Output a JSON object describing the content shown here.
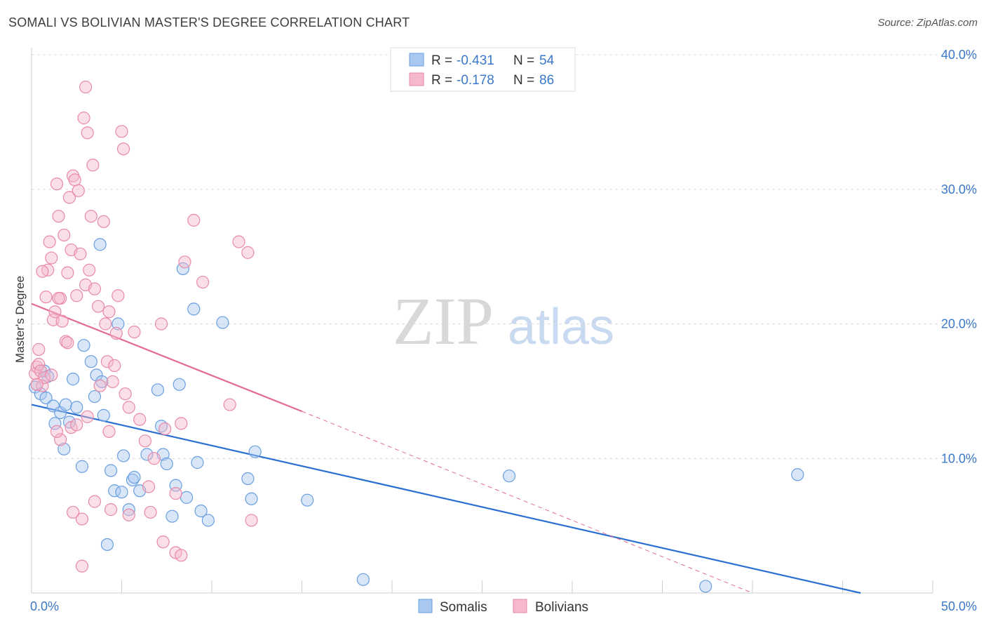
{
  "header": {
    "title": "SOMALI VS BOLIVIAN MASTER'S DEGREE CORRELATION CHART",
    "source": "Source: ZipAtlas.com"
  },
  "watermark": {
    "zip": "ZIP",
    "atlas": "atlas"
  },
  "legend": {
    "rows": [
      {
        "r_label": "R =",
        "r_value": "-0.431",
        "n_label": "N =",
        "n_value": "54",
        "color": "#a8c8f0"
      },
      {
        "r_label": "R =",
        "r_value": "-0.178",
        "n_label": "N =",
        "n_value": "86",
        "color": "#f5b8cc"
      }
    ]
  },
  "bottom_legend": [
    {
      "label": "Somalis",
      "color": "#a8c8f0"
    },
    {
      "label": "Bolivians",
      "color": "#f5b8cc"
    }
  ],
  "chart_data": {
    "type": "scatter",
    "xlabel": "",
    "ylabel": "Master's Degree",
    "xlim": [
      0,
      50
    ],
    "ylim": [
      0,
      40
    ],
    "y_ticks": [
      {
        "value": 10,
        "label": "10.0%"
      },
      {
        "value": 20,
        "label": "20.0%"
      },
      {
        "value": 30,
        "label": "30.0%"
      },
      {
        "value": 40,
        "label": "40.0%"
      }
    ],
    "x_tick_labels": [
      {
        "value": 0,
        "label": "0.0%"
      },
      {
        "value": 50,
        "label": "50.0%"
      }
    ],
    "series": [
      {
        "name": "Somalis",
        "color": "#a8c8f0",
        "stroke": "#6a9fe0",
        "trend_color": "#2b6fd1",
        "trend": {
          "x0": 0,
          "y0": 14.0,
          "x1": 46.0,
          "y1": 0.0
        },
        "points": [
          [
            0.2,
            15.3
          ],
          [
            0.5,
            14.8
          ],
          [
            0.7,
            16.5
          ],
          [
            0.9,
            16.1
          ],
          [
            0.8,
            14.5
          ],
          [
            1.2,
            13.9
          ],
          [
            1.3,
            12.6
          ],
          [
            1.6,
            13.4
          ],
          [
            1.9,
            14.0
          ],
          [
            1.8,
            10.7
          ],
          [
            2.1,
            12.7
          ],
          [
            2.3,
            15.9
          ],
          [
            2.5,
            13.8
          ],
          [
            2.8,
            9.4
          ],
          [
            2.9,
            18.4
          ],
          [
            3.3,
            17.2
          ],
          [
            3.5,
            14.6
          ],
          [
            3.6,
            16.2
          ],
          [
            3.9,
            15.7
          ],
          [
            3.8,
            25.9
          ],
          [
            4.0,
            13.2
          ],
          [
            4.4,
            9.1
          ],
          [
            4.6,
            7.6
          ],
          [
            4.8,
            20.0
          ],
          [
            5.0,
            7.5
          ],
          [
            5.1,
            10.2
          ],
          [
            5.4,
            6.2
          ],
          [
            5.6,
            8.4
          ],
          [
            5.7,
            8.6
          ],
          [
            6.0,
            7.6
          ],
          [
            6.4,
            10.3
          ],
          [
            7.0,
            15.1
          ],
          [
            7.2,
            12.4
          ],
          [
            7.3,
            10.3
          ],
          [
            7.5,
            9.6
          ],
          [
            7.8,
            5.7
          ],
          [
            8.0,
            8.0
          ],
          [
            8.2,
            15.5
          ],
          [
            8.4,
            24.1
          ],
          [
            8.6,
            7.1
          ],
          [
            9.0,
            21.1
          ],
          [
            9.2,
            9.7
          ],
          [
            9.4,
            6.1
          ],
          [
            9.8,
            5.4
          ],
          [
            10.6,
            20.1
          ],
          [
            12.0,
            8.5
          ],
          [
            12.2,
            7.0
          ],
          [
            12.4,
            10.5
          ],
          [
            15.3,
            6.9
          ],
          [
            18.4,
            1.0
          ],
          [
            26.5,
            8.7
          ],
          [
            37.4,
            0.5
          ],
          [
            42.5,
            8.8
          ],
          [
            4.2,
            3.6
          ]
        ]
      },
      {
        "name": "Bolivians",
        "color": "#f5b8cc",
        "stroke": "#e88aa8",
        "trend_color": "#e36a93",
        "trend": {
          "x0": 0,
          "y0": 21.5,
          "x1": 15.0,
          "y1": 13.5
        },
        "trend_dashed": {
          "x0": 15.0,
          "y0": 13.5,
          "x1": 40.0,
          "y1": 0.0
        },
        "points": [
          [
            0.2,
            16.3
          ],
          [
            0.3,
            16.8
          ],
          [
            0.4,
            17.0
          ],
          [
            0.5,
            16.5
          ],
          [
            0.4,
            18.1
          ],
          [
            0.6,
            15.4
          ],
          [
            0.7,
            16.0
          ],
          [
            0.8,
            22.0
          ],
          [
            0.9,
            24.0
          ],
          [
            1.0,
            26.1
          ],
          [
            1.1,
            24.9
          ],
          [
            1.2,
            20.3
          ],
          [
            1.3,
            20.9
          ],
          [
            1.4,
            30.4
          ],
          [
            1.5,
            28.0
          ],
          [
            1.6,
            21.9
          ],
          [
            1.7,
            20.2
          ],
          [
            1.8,
            26.6
          ],
          [
            1.9,
            18.7
          ],
          [
            2.0,
            23.8
          ],
          [
            2.1,
            29.4
          ],
          [
            2.2,
            25.5
          ],
          [
            2.3,
            31.0
          ],
          [
            2.4,
            30.7
          ],
          [
            2.5,
            22.1
          ],
          [
            2.6,
            29.9
          ],
          [
            2.7,
            25.2
          ],
          [
            2.9,
            35.3
          ],
          [
            3.0,
            22.9
          ],
          [
            3.1,
            34.2
          ],
          [
            3.2,
            24.0
          ],
          [
            3.3,
            28.0
          ],
          [
            3.4,
            31.8
          ],
          [
            3.5,
            22.6
          ],
          [
            3.7,
            21.3
          ],
          [
            3.8,
            15.4
          ],
          [
            4.0,
            27.6
          ],
          [
            4.1,
            20.0
          ],
          [
            4.2,
            17.2
          ],
          [
            4.3,
            20.9
          ],
          [
            4.5,
            15.7
          ],
          [
            4.6,
            16.9
          ],
          [
            4.7,
            19.3
          ],
          [
            4.8,
            22.1
          ],
          [
            5.0,
            34.3
          ],
          [
            5.1,
            33.0
          ],
          [
            5.2,
            14.8
          ],
          [
            5.4,
            13.8
          ],
          [
            5.7,
            19.4
          ],
          [
            6.0,
            12.9
          ],
          [
            6.3,
            11.3
          ],
          [
            6.5,
            7.9
          ],
          [
            6.8,
            10.0
          ],
          [
            7.2,
            20.0
          ],
          [
            7.4,
            12.2
          ],
          [
            8.0,
            7.4
          ],
          [
            8.3,
            12.6
          ],
          [
            8.5,
            24.6
          ],
          [
            9.0,
            27.7
          ],
          [
            9.5,
            23.1
          ],
          [
            11.0,
            14.0
          ],
          [
            11.5,
            26.1
          ],
          [
            12.0,
            25.3
          ],
          [
            12.2,
            5.4
          ],
          [
            8.0,
            3.0
          ],
          [
            8.3,
            2.8
          ],
          [
            2.8,
            2.0
          ],
          [
            7.3,
            3.8
          ],
          [
            6.6,
            6.0
          ],
          [
            5.4,
            5.8
          ],
          [
            4.4,
            6.2
          ],
          [
            3.5,
            6.8
          ],
          [
            2.8,
            5.5
          ],
          [
            2.3,
            6.0
          ],
          [
            1.6,
            11.4
          ],
          [
            1.4,
            12.0
          ],
          [
            2.2,
            12.3
          ],
          [
            2.5,
            12.5
          ],
          [
            0.6,
            23.9
          ],
          [
            3.0,
            37.6
          ],
          [
            2.0,
            18.6
          ],
          [
            1.1,
            16.2
          ],
          [
            1.5,
            21.9
          ],
          [
            4.3,
            12.0
          ],
          [
            3.1,
            13.1
          ],
          [
            0.3,
            15.5
          ]
        ]
      }
    ]
  }
}
